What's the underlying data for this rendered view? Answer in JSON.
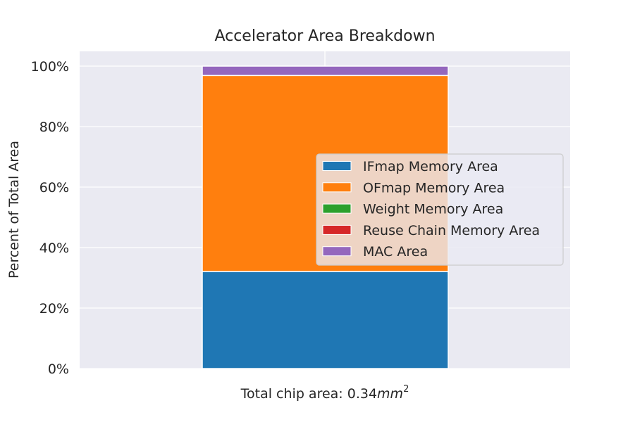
{
  "chart_data": {
    "type": "bar",
    "stacked": true,
    "title": "Accelerator Area Breakdown",
    "ylabel": "Percent of Total Area",
    "xlabel_prefix": "Total chip area: 0.34",
    "xlabel_unit": "mm",
    "xlabel_exponent": "2",
    "ylim": [
      0,
      100
    ],
    "yticks": [
      "0%",
      "20%",
      "40%",
      "60%",
      "80%",
      "100%"
    ],
    "ytick_values": [
      0,
      20,
      40,
      60,
      80,
      100
    ],
    "grid": true,
    "legend_position": "center-right",
    "series": [
      {
        "name": "IFmap Memory Area",
        "value": 32.1,
        "color": "#1f77b4"
      },
      {
        "name": "OFmap Memory Area",
        "value": 64.8,
        "color": "#ff7f0e"
      },
      {
        "name": "Weight Memory Area",
        "value": 0.0,
        "color": "#2ca02c"
      },
      {
        "name": "Reuse Chain Memory Area",
        "value": 0.0,
        "color": "#d62728"
      },
      {
        "name": "MAC Area",
        "value": 3.1,
        "color": "#9467bd"
      }
    ]
  }
}
